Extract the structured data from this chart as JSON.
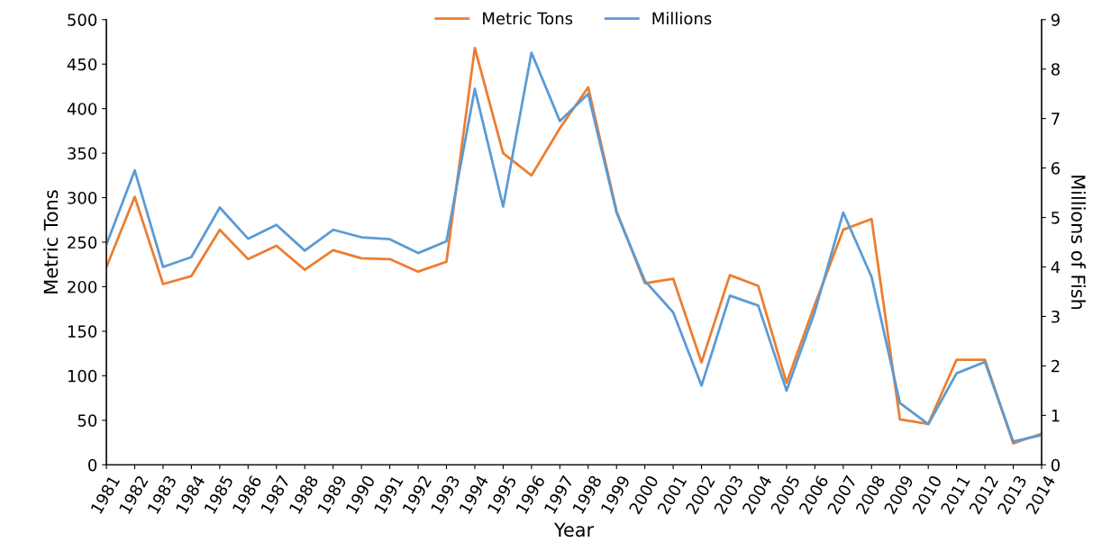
{
  "chart_data": {
    "type": "line",
    "xlabel": "Year",
    "ylabel": "Metric Tons",
    "y2label": "Millions of Fish",
    "categories": [
      "1981",
      "1982",
      "1983",
      "1984",
      "1985",
      "1986",
      "1987",
      "1988",
      "1989",
      "1990",
      "1991",
      "1992",
      "1993",
      "1994",
      "1995",
      "1996",
      "1997",
      "1998",
      "1999",
      "2000",
      "2001",
      "2002",
      "2003",
      "2004",
      "2005",
      "2006",
      "2007",
      "2008",
      "2009",
      "2010",
      "2011",
      "2012",
      "2013",
      "2014"
    ],
    "series": [
      {
        "name": "Metric Tons",
        "color": "#ed7d31",
        "values": [
          222,
          301,
          203,
          212,
          264,
          231,
          246,
          219,
          241,
          232,
          231,
          217,
          228,
          468,
          350,
          325,
          378,
          424,
          285,
          204,
          209,
          115,
          213,
          201,
          92,
          180,
          264,
          276,
          51,
          46,
          118,
          118,
          24,
          35
        ]
      },
      {
        "name": "Millions",
        "color": "#5b9bd5",
        "axis": "y2",
        "values": [
          4.45,
          5.95,
          4.0,
          4.2,
          5.2,
          4.57,
          4.85,
          4.33,
          4.75,
          4.6,
          4.56,
          4.28,
          4.52,
          7.6,
          5.22,
          8.33,
          6.95,
          7.5,
          5.1,
          3.72,
          3.08,
          1.6,
          3.42,
          3.22,
          1.5,
          3.1,
          5.1,
          3.8,
          1.25,
          0.82,
          1.85,
          2.08,
          0.47,
          0.6
        ]
      }
    ],
    "ylim": [
      0,
      500
    ],
    "yticks": [
      0,
      50,
      100,
      150,
      200,
      250,
      300,
      350,
      400,
      450,
      500
    ],
    "y2lim": [
      0,
      9
    ],
    "y2ticks": [
      0,
      1,
      2,
      3,
      4,
      5,
      6,
      7,
      8,
      9
    ],
    "grid": false,
    "legend": "top",
    "marker": "none",
    "line_style": "solid"
  }
}
